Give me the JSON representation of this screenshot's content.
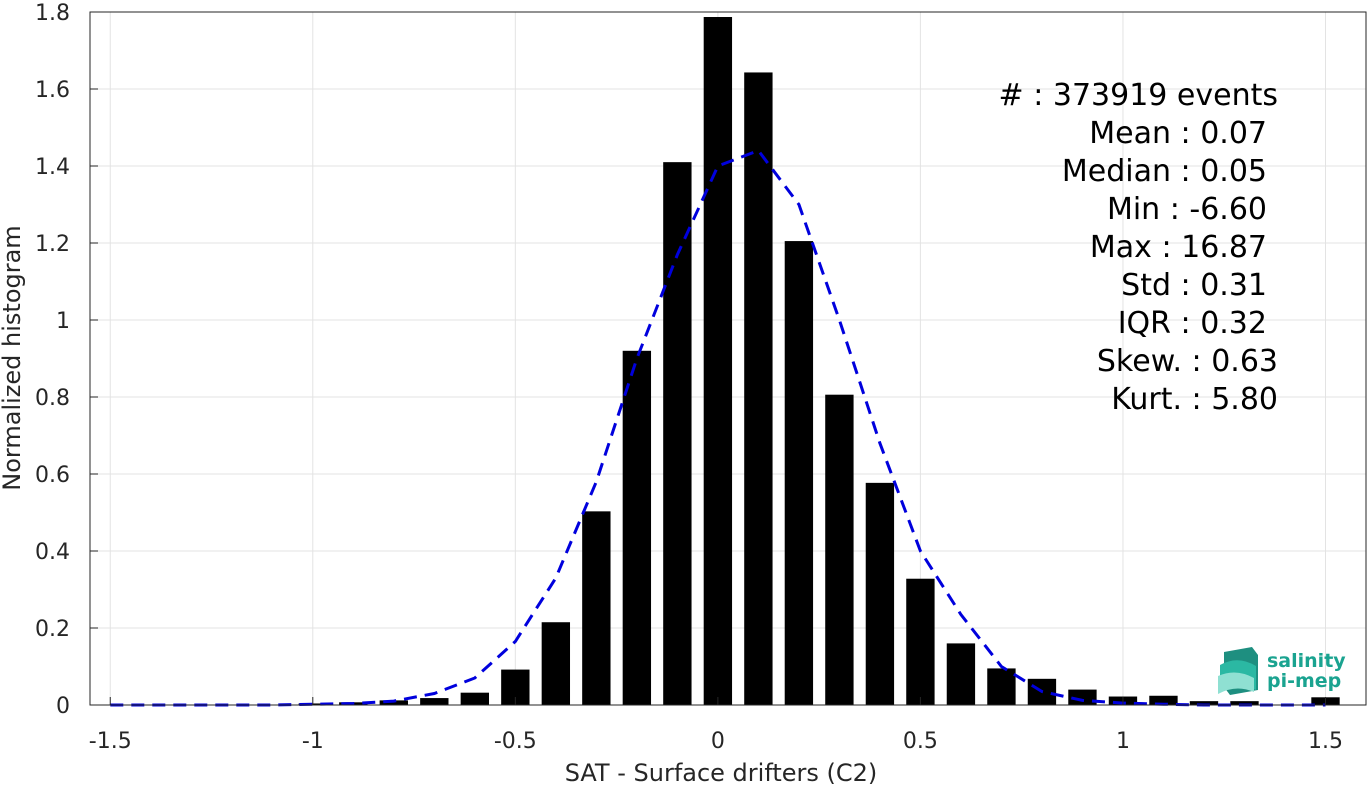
{
  "chart_data": {
    "type": "bar",
    "xlabel": "SAT - Surface drifters (C2)",
    "ylabel": "Normalized histogram",
    "xlim": [
      -1.55,
      1.6
    ],
    "ylim": [
      0,
      1.8
    ],
    "grid": true,
    "x_ticks": [
      -1.5,
      -1,
      -0.5,
      0,
      0.5,
      1,
      1.5
    ],
    "x_tick_labels": [
      "-1.5",
      "-1",
      "-0.5",
      "0",
      "0.5",
      "1",
      "1.5"
    ],
    "y_ticks": [
      0,
      0.2,
      0.4,
      0.6,
      0.8,
      1,
      1.2,
      1.4,
      1.6,
      1.8
    ],
    "y_tick_labels": [
      "0",
      "0.2",
      "0.4",
      "0.6",
      "0.8",
      "1",
      "1.2",
      "1.4",
      "1.6",
      "1.8"
    ],
    "bar_color": "#000000",
    "bar_width": 0.07,
    "bars": {
      "x": [
        -1.5,
        -1.4,
        -1.3,
        -1.2,
        -1.1,
        -1.0,
        -0.9,
        -0.8,
        -0.7,
        -0.6,
        -0.5,
        -0.4,
        -0.3,
        -0.2,
        -0.1,
        0.0,
        0.1,
        0.2,
        0.3,
        0.4,
        0.5,
        0.6,
        0.7,
        0.8,
        0.9,
        1.0,
        1.1,
        1.2,
        1.3,
        1.5
      ],
      "values": [
        0.001,
        0.001,
        0.001,
        0.001,
        0.001,
        0.004,
        0.007,
        0.012,
        0.018,
        0.032,
        0.092,
        0.215,
        0.503,
        0.92,
        1.41,
        1.787,
        1.643,
        1.205,
        0.806,
        0.577,
        0.328,
        0.16,
        0.095,
        0.068,
        0.04,
        0.022,
        0.024,
        0.01,
        0.01,
        0.02
      ]
    },
    "fit_curve": {
      "style": "dashed",
      "color": "#0000dd",
      "x": [
        -1.5,
        -1.3,
        -1.1,
        -1.0,
        -0.9,
        -0.8,
        -0.7,
        -0.6,
        -0.5,
        -0.4,
        -0.3,
        -0.2,
        -0.1,
        0.0,
        0.1,
        0.2,
        0.3,
        0.4,
        0.5,
        0.6,
        0.7,
        0.8,
        0.9,
        1.0,
        1.1,
        1.2,
        1.3,
        1.4,
        1.5
      ],
      "y": [
        0.0,
        0.0,
        0.0,
        0.002,
        0.004,
        0.01,
        0.03,
        0.07,
        0.165,
        0.33,
        0.58,
        0.9,
        1.17,
        1.4,
        1.44,
        1.3,
        1.0,
        0.68,
        0.4,
        0.235,
        0.1,
        0.035,
        0.012,
        0.005,
        0.002,
        0.0,
        0.0,
        0.0,
        0.0
      ]
    },
    "annotations": [
      "#  : 373919 events",
      "Mean : 0.07",
      "Median : 0.05",
      "Min : -6.60",
      "Max : 16.87",
      "Std : 0.31",
      "IQR : 0.32",
      "Skew. : 0.63",
      "Kurt. : 5.80"
    ]
  },
  "logo": {
    "line1": "salinity",
    "line2": "pi-mep",
    "color": "#1aa390"
  }
}
